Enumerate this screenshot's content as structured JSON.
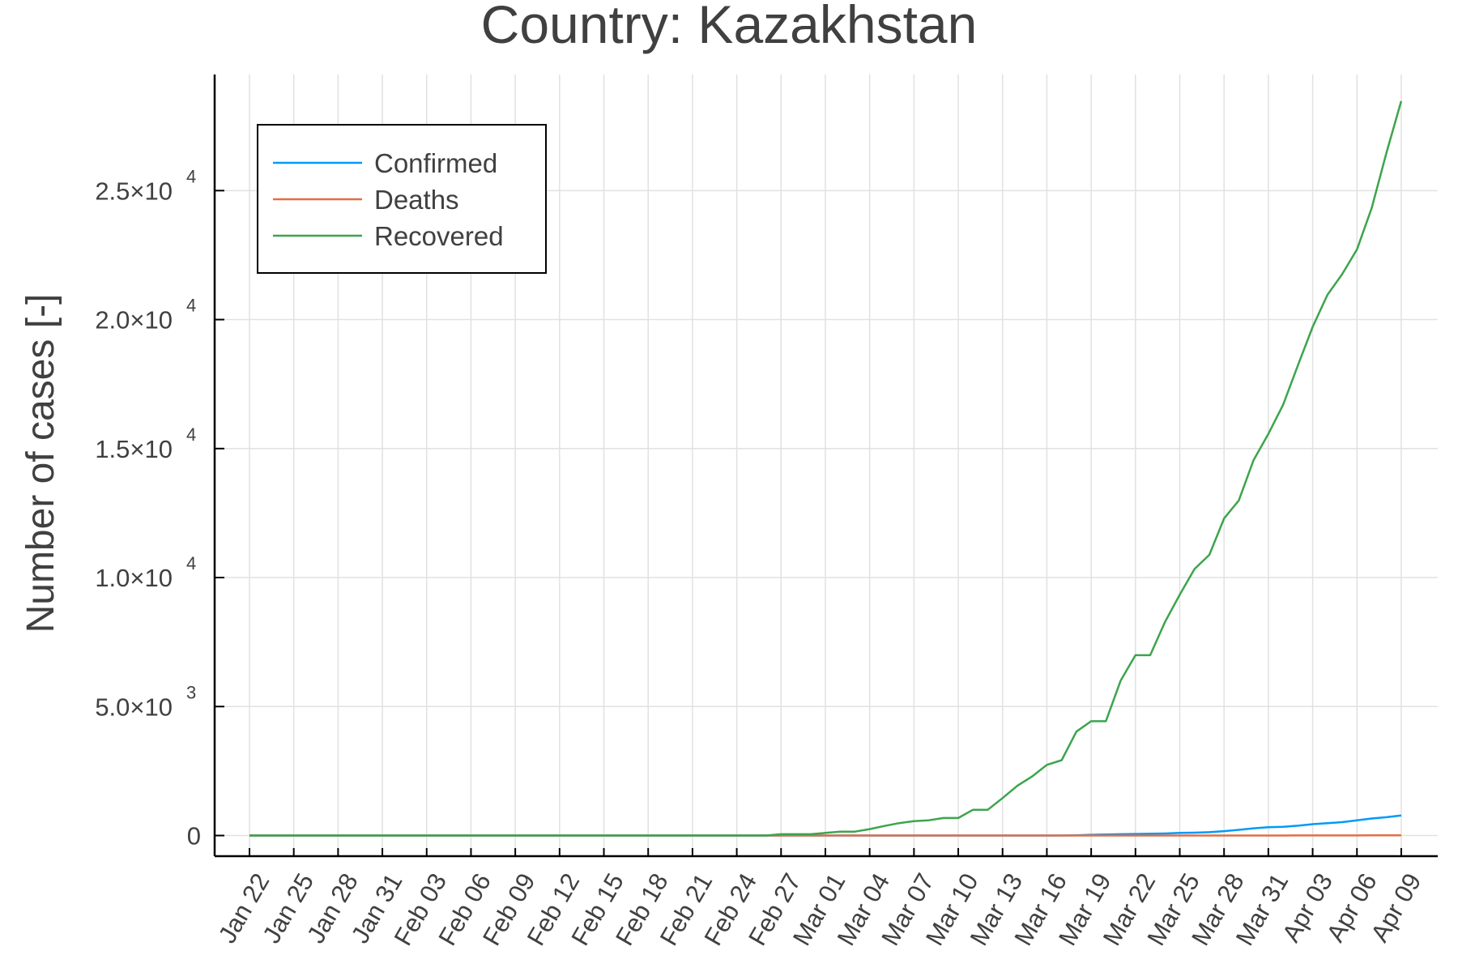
{
  "chart_data": {
    "type": "line",
    "title": "Country: Kazakhstan",
    "xlabel": "",
    "ylabel": "Number of cases [-]",
    "ylim": [
      -800,
      29500
    ],
    "grid": true,
    "legend_position": "top-left",
    "x": [
      "Jan 22",
      "Jan 23",
      "Jan 24",
      "Jan 25",
      "Jan 26",
      "Jan 27",
      "Jan 28",
      "Jan 29",
      "Jan 30",
      "Jan 31",
      "Feb 01",
      "Feb 02",
      "Feb 03",
      "Feb 04",
      "Feb 05",
      "Feb 06",
      "Feb 07",
      "Feb 08",
      "Feb 09",
      "Feb 10",
      "Feb 11",
      "Feb 12",
      "Feb 13",
      "Feb 14",
      "Feb 15",
      "Feb 16",
      "Feb 17",
      "Feb 18",
      "Feb 19",
      "Feb 20",
      "Feb 21",
      "Feb 22",
      "Feb 23",
      "Feb 24",
      "Feb 25",
      "Feb 26",
      "Feb 27",
      "Feb 28",
      "Feb 29",
      "Mar 01",
      "Mar 02",
      "Mar 03",
      "Mar 04",
      "Mar 05",
      "Mar 06",
      "Mar 07",
      "Mar 08",
      "Mar 09",
      "Mar 10",
      "Mar 11",
      "Mar 12",
      "Mar 13",
      "Mar 14",
      "Mar 15",
      "Mar 16",
      "Mar 17",
      "Mar 18",
      "Mar 19",
      "Mar 20",
      "Mar 21",
      "Mar 22",
      "Mar 23",
      "Mar 24",
      "Mar 25",
      "Mar 26",
      "Mar 27",
      "Mar 28",
      "Mar 29",
      "Mar 30",
      "Mar 31",
      "Apr 01",
      "Apr 02",
      "Apr 03",
      "Apr 04",
      "Apr 05",
      "Apr 06",
      "Apr 07",
      "Apr 08",
      "Apr 09"
    ],
    "x_tick_labels": [
      "Jan 22",
      "Jan 25",
      "Jan 28",
      "Jan 31",
      "Feb 03",
      "Feb 06",
      "Feb 09",
      "Feb 12",
      "Feb 15",
      "Feb 18",
      "Feb 21",
      "Feb 24",
      "Feb 27",
      "Mar 01",
      "Mar 04",
      "Mar 07",
      "Mar 10",
      "Mar 13",
      "Mar 16",
      "Mar 19",
      "Mar 22",
      "Mar 25",
      "Mar 28",
      "Mar 31",
      "Apr 03",
      "Apr 06",
      "Apr 09"
    ],
    "y_ticks": [
      {
        "value": 0,
        "mantissa": "0",
        "exponent": ""
      },
      {
        "value": 5000,
        "mantissa": "5.0×10",
        "exponent": "3"
      },
      {
        "value": 10000,
        "mantissa": "1.0×10",
        "exponent": "4"
      },
      {
        "value": 15000,
        "mantissa": "1.5×10",
        "exponent": "4"
      },
      {
        "value": 20000,
        "mantissa": "2.0×10",
        "exponent": "4"
      },
      {
        "value": 25000,
        "mantissa": "2.5×10",
        "exponent": "4"
      }
    ],
    "series": [
      {
        "name": "Confirmed",
        "color": "#009af9",
        "values": [
          0,
          0,
          0,
          0,
          0,
          0,
          0,
          0,
          0,
          0,
          0,
          0,
          0,
          0,
          0,
          0,
          0,
          0,
          0,
          0,
          0,
          0,
          0,
          0,
          0,
          0,
          0,
          0,
          0,
          0,
          0,
          0,
          0,
          0,
          0,
          0,
          0,
          0,
          0,
          0,
          0,
          0,
          0,
          0,
          0,
          0,
          0,
          0,
          0,
          0,
          0,
          0,
          0,
          0,
          0,
          0,
          10,
          30,
          40,
          50,
          60,
          70,
          80,
          100,
          110,
          130,
          170,
          220,
          280,
          320,
          340,
          380,
          440,
          480,
          520,
          590,
          660,
          710,
          780
        ]
      },
      {
        "name": "Deaths",
        "color": "#e26f46",
        "values": [
          0,
          0,
          0,
          0,
          0,
          0,
          0,
          0,
          0,
          0,
          0,
          0,
          0,
          0,
          0,
          0,
          0,
          0,
          0,
          0,
          0,
          0,
          0,
          0,
          0,
          0,
          0,
          0,
          0,
          0,
          0,
          0,
          0,
          0,
          0,
          0,
          0,
          0,
          0,
          0,
          0,
          0,
          0,
          0,
          0,
          0,
          0,
          0,
          0,
          0,
          0,
          0,
          0,
          0,
          0,
          0,
          0,
          0,
          0,
          0,
          0,
          0,
          0,
          0,
          0,
          1,
          1,
          1,
          1,
          2,
          2,
          3,
          3,
          4,
          5,
          5,
          6,
          6,
          6
        ]
      },
      {
        "name": "Recovered",
        "color": "#3da44d",
        "values": [
          0,
          0,
          0,
          0,
          0,
          0,
          0,
          0,
          0,
          0,
          0,
          0,
          0,
          0,
          0,
          0,
          0,
          0,
          0,
          0,
          0,
          0,
          0,
          0,
          0,
          0,
          0,
          0,
          0,
          0,
          0,
          0,
          0,
          0,
          0,
          0,
          50,
          50,
          50,
          100,
          150,
          150,
          250,
          370,
          480,
          560,
          590,
          680,
          680,
          1000,
          1000,
          1450,
          1930,
          2290,
          2740,
          2920,
          4030,
          4430,
          4430,
          6010,
          6990,
          6990,
          8280,
          9340,
          10330,
          10880,
          12290,
          12990,
          14550,
          15570,
          16700,
          18220,
          19720,
          20960,
          21760,
          22720,
          24330,
          26470,
          28470
        ]
      }
    ]
  }
}
